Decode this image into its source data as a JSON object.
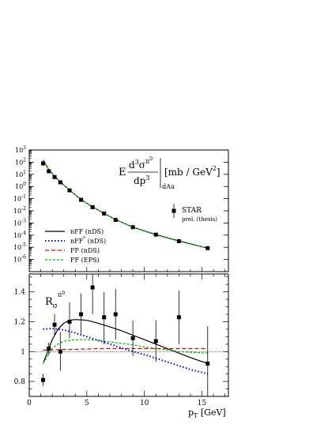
{
  "chart_data": [
    {
      "type": "scatter",
      "panel": "top",
      "title": "",
      "formula": {
        "prefix": "E",
        "numerator": "d",
        "numerator_sup": "3",
        "numerator_sym": "σ",
        "numerator_sym_sup": "π",
        "numerator_sym_sup2": "0",
        "denominator": "dp",
        "denominator_sup": "3",
        "subscript": "dAu",
        "units": "[mb / GeV",
        "units_sup": "2",
        "units_close": "]"
      },
      "scale": "log",
      "xlim": [
        0,
        17.3
      ],
      "ylim_exp": [
        -7,
        3
      ],
      "y_tick_exps": [
        3,
        2,
        1,
        0,
        -1,
        -2,
        -3,
        -4,
        -5,
        -6
      ],
      "data_legend": {
        "symbol": "square",
        "label": "STAR",
        "sublabel": "prel. (thesis)"
      },
      "series_data": {
        "name": "STAR",
        "points": [
          {
            "x": 1.2,
            "y": 80,
            "ylo": 50,
            "yhi": 110
          },
          {
            "x": 1.7,
            "y": 18
          },
          {
            "x": 2.2,
            "y": 6.0
          },
          {
            "x": 2.7,
            "y": 2.2
          },
          {
            "x": 3.5,
            "y": 0.48
          },
          {
            "x": 4.5,
            "y": 0.08
          },
          {
            "x": 5.5,
            "y": 0.02
          },
          {
            "x": 6.5,
            "y": 0.006
          },
          {
            "x": 7.5,
            "y": 0.0018
          },
          {
            "x": 9.0,
            "y": 0.00045
          },
          {
            "x": 11.0,
            "y": 0.00011
          },
          {
            "x": 13.0,
            "y": 3.2e-05
          },
          {
            "x": 15.5,
            "y": 8.5e-06
          }
        ]
      },
      "curves": [
        {
          "name": "nFF (nDS)",
          "color": "#000000",
          "dash": "",
          "x": [
            1.2,
            1.7,
            2.2,
            2.7,
            3.5,
            4.5,
            5.5,
            6.5,
            7.5,
            9.0,
            11.0,
            13.0,
            15.5
          ],
          "y": [
            150,
            25,
            7.0,
            2.4,
            0.5,
            0.085,
            0.021,
            0.0062,
            0.0019,
            0.00045,
            0.00011,
            3.3e-05,
            8.5e-06
          ]
        },
        {
          "name": "FF (EPS)",
          "color": "#00cc00",
          "dash": "3,2",
          "x": [
            1.2,
            1.7,
            2.2,
            2.7,
            3.5,
            4.5,
            5.5,
            6.5,
            7.5,
            9.0,
            11.0,
            13.0,
            15.5
          ],
          "y": [
            140,
            24,
            6.8,
            2.35,
            0.49,
            0.083,
            0.0205,
            0.006,
            0.00185,
            0.00044,
            0.000105,
            3.1e-05,
            8.2e-06
          ]
        }
      ],
      "legend": [
        {
          "label": "nFF (nDS)",
          "color": "#000000",
          "dash": ""
        },
        {
          "label": "nFF",
          "label_sup": "*",
          "label_rest": " (nDS)",
          "color": "#0000dd",
          "dash": "1.5,2.5"
        },
        {
          "label": "FF (nDS)",
          "color": "#dd0000",
          "dash": "5,3"
        },
        {
          "label": "FF (EPS)",
          "color": "#00bb00",
          "dash": "3,2"
        }
      ]
    },
    {
      "type": "scatter",
      "panel": "bottom",
      "title": "",
      "ylabel": "R",
      "ylabel_sub": "σ",
      "ylabel_sup": "π",
      "ylabel_sup2": "0",
      "xlabel": "p",
      "xlabel_sub": "T",
      "xlabel_units": " [GeV]",
      "xlim": [
        0,
        17.3
      ],
      "ylim": [
        0.7,
        1.52
      ],
      "x_ticks": [
        0,
        5,
        10,
        15
      ],
      "y_ticks": [
        0.8,
        1,
        1.2,
        1.4
      ],
      "y_tick_labels": [
        "0.8",
        "1",
        "1.2",
        "1.4"
      ],
      "reference_line": 1,
      "points": [
        {
          "x": 1.2,
          "y": 0.81,
          "ylo": 0.77,
          "yhi": 0.85
        },
        {
          "x": 1.7,
          "y": 1.02,
          "ylo": 0.98,
          "yhi": 1.06
        },
        {
          "x": 2.2,
          "y": 1.18,
          "ylo": 1.11,
          "yhi": 1.25
        },
        {
          "x": 2.7,
          "y": 1.0,
          "ylo": 0.87,
          "yhi": 1.13
        },
        {
          "x": 3.5,
          "y": 1.2,
          "ylo": 1.09,
          "yhi": 1.33
        },
        {
          "x": 4.5,
          "y": 1.25,
          "ylo": 1.12,
          "yhi": 1.39
        },
        {
          "x": 5.5,
          "y": 1.43,
          "ylo": 1.25,
          "yhi": 1.6
        },
        {
          "x": 6.5,
          "y": 1.23,
          "ylo": 1.05,
          "yhi": 1.4
        },
        {
          "x": 7.5,
          "y": 1.25,
          "ylo": 1.08,
          "yhi": 1.42
        },
        {
          "x": 9.0,
          "y": 1.09,
          "ylo": 0.97,
          "yhi": 1.21
        },
        {
          "x": 11.0,
          "y": 1.07,
          "ylo": 0.93,
          "yhi": 1.21
        },
        {
          "x": 13.0,
          "y": 1.23,
          "ylo": 1.05,
          "yhi": 1.41
        },
        {
          "x": 15.5,
          "y": 0.92,
          "ylo": 0.67,
          "yhi": 1.17
        }
      ],
      "curves": [
        {
          "name": "nFF (nDS)",
          "color": "#000000",
          "dash": "",
          "x": [
            1.2,
            1.6,
            2.0,
            2.5,
            3.0,
            3.5,
            4.0,
            5.0,
            6.0,
            7.0,
            8.0,
            9.0,
            10.0,
            11.0,
            12.0,
            13.0,
            14.0,
            15.5
          ],
          "y": [
            0.92,
            1.0,
            1.08,
            1.15,
            1.19,
            1.21,
            1.215,
            1.21,
            1.19,
            1.165,
            1.14,
            1.11,
            1.08,
            1.05,
            1.02,
            0.99,
            0.96,
            0.92
          ]
        },
        {
          "name": "nFF* (nDS)",
          "color": "#0000dd",
          "dash": "1.5,2.5",
          "x": [
            1.2,
            2.0,
            3.0,
            4.0,
            5.0,
            6.0,
            7.0,
            8.0,
            9.0,
            10.0,
            11.0,
            12.0,
            13.0,
            14.0,
            15.5
          ],
          "y": [
            1.15,
            1.155,
            1.145,
            1.125,
            1.1,
            1.075,
            1.05,
            1.025,
            1.0,
            0.98,
            0.955,
            0.93,
            0.905,
            0.88,
            0.85
          ]
        },
        {
          "name": "FF (nDS)",
          "color": "#dd0000",
          "dash": "5,3",
          "x": [
            1.2,
            2.0,
            3.0,
            4.0,
            6.0,
            8.0,
            10.0,
            12.0,
            14.0,
            15.5
          ],
          "y": [
            1.01,
            1.01,
            1.015,
            1.015,
            1.02,
            1.02,
            1.02,
            1.02,
            1.02,
            1.02
          ]
        },
        {
          "name": "FF (EPS)",
          "color": "#00bb00",
          "dash": "3,2",
          "x": [
            1.2,
            1.6,
            2.0,
            2.5,
            3.0,
            3.5,
            4.0,
            5.0,
            6.0,
            7.0,
            8.0,
            9.0,
            10.0,
            11.0,
            12.0,
            13.0,
            14.0,
            15.5
          ],
          "y": [
            0.92,
            0.97,
            1.02,
            1.05,
            1.07,
            1.075,
            1.08,
            1.08,
            1.075,
            1.065,
            1.055,
            1.045,
            1.03,
            1.02,
            1.01,
            1.0,
            0.995,
            0.99
          ]
        }
      ]
    }
  ]
}
